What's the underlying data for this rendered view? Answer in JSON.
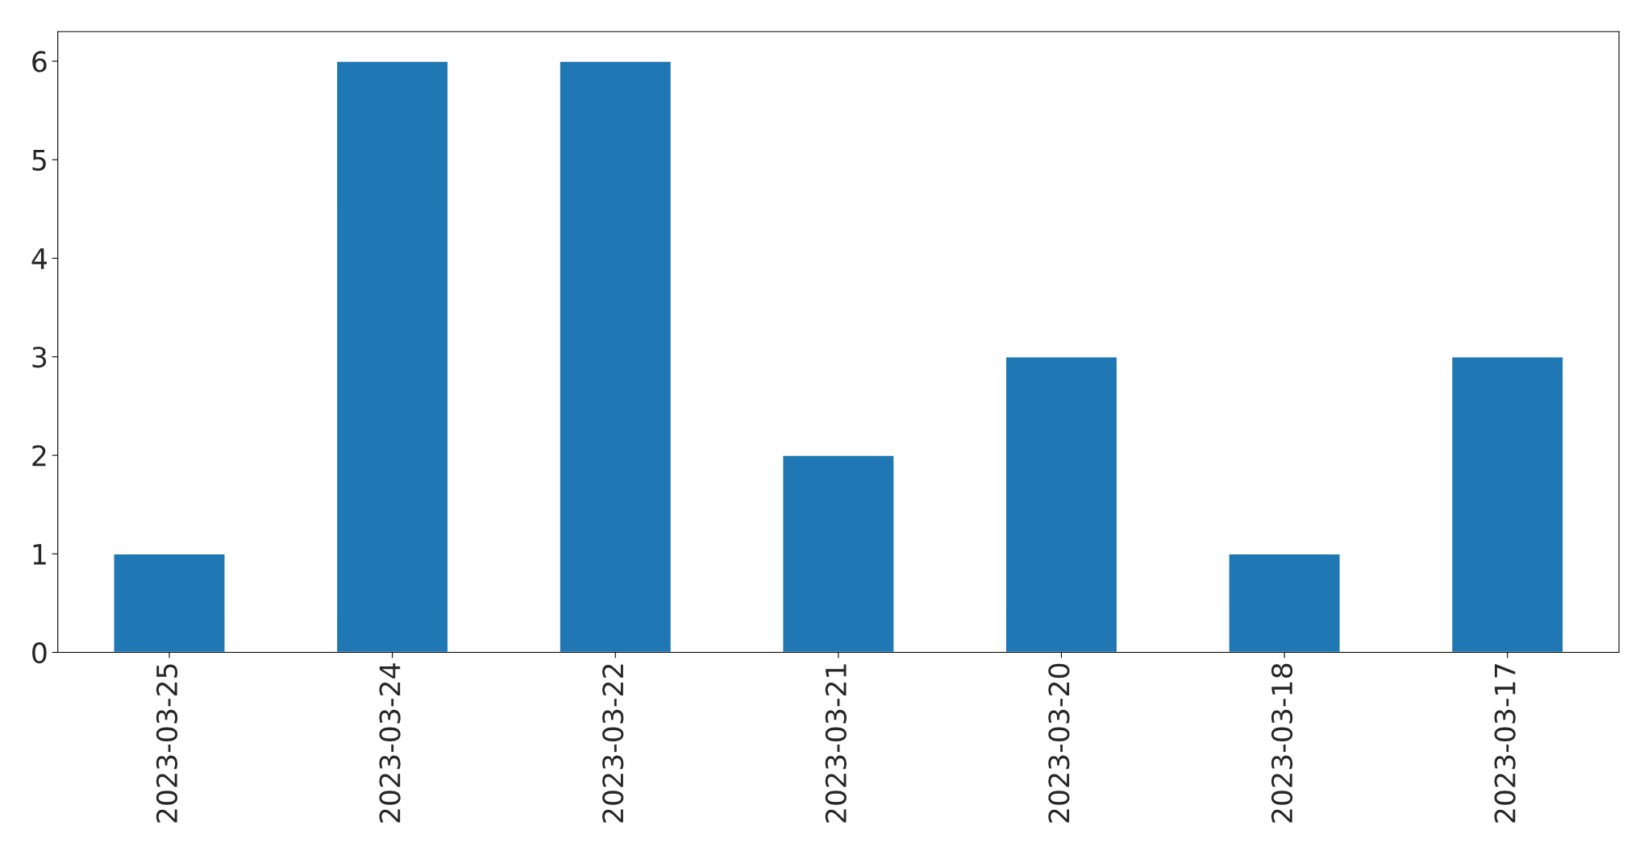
{
  "chart_data": {
    "type": "bar",
    "categories": [
      "2023-03-25",
      "2023-03-24",
      "2023-03-22",
      "2023-03-21",
      "2023-03-20",
      "2023-03-18",
      "2023-03-17"
    ],
    "values": [
      1,
      6,
      6,
      2,
      3,
      1,
      3
    ],
    "color": "#1f77b4",
    "ylim": [
      0,
      6.3
    ],
    "yticks": [
      0,
      1,
      2,
      3,
      4,
      5,
      6
    ],
    "grid": false
  }
}
